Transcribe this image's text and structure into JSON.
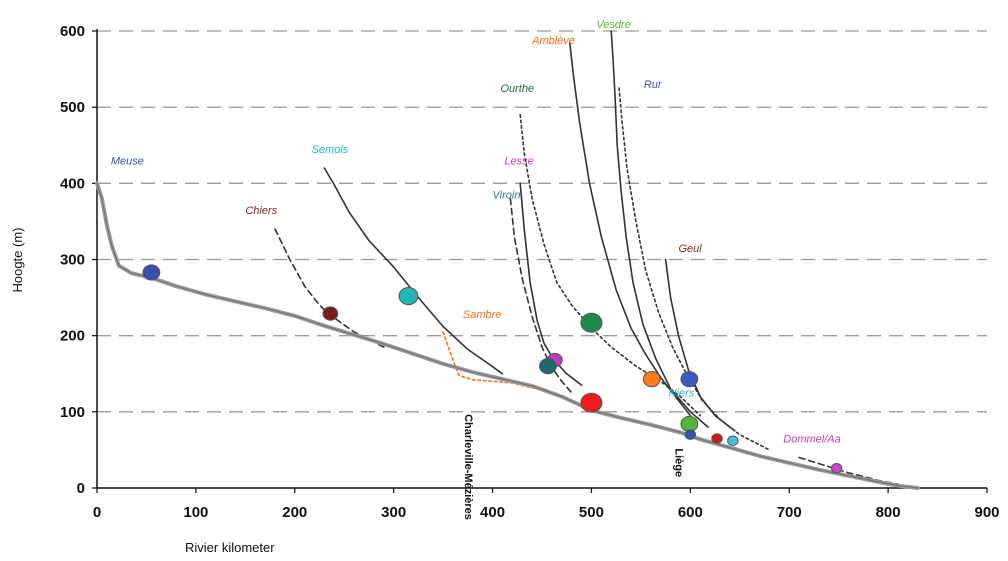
{
  "chart_data": {
    "type": "line",
    "xlabel": "Rivier kilometer",
    "ylabel": "Hoogte (m)",
    "xlim": [
      0,
      900
    ],
    "ylim": [
      0,
      600
    ],
    "x_ticks": [
      "0",
      "100",
      "200",
      "300",
      "400",
      "500",
      "600",
      "700",
      "800",
      "900"
    ],
    "y_ticks": [
      "0",
      "100",
      "200",
      "300",
      "400",
      "500",
      "600"
    ],
    "grid": "horizontal-dashed",
    "main_river": {
      "name": "Meuse",
      "color": "#9a9a9a",
      "points": [
        [
          0,
          400
        ],
        [
          5,
          380
        ],
        [
          10,
          345
        ],
        [
          15,
          318
        ],
        [
          22,
          292
        ],
        [
          35,
          282
        ],
        [
          55,
          276
        ],
        [
          80,
          265
        ],
        [
          110,
          254
        ],
        [
          140,
          245
        ],
        [
          170,
          236
        ],
        [
          200,
          226
        ],
        [
          230,
          213
        ],
        [
          260,
          201
        ],
        [
          290,
          189
        ],
        [
          320,
          176
        ],
        [
          350,
          163
        ],
        [
          380,
          152
        ],
        [
          410,
          143
        ],
        [
          440,
          134
        ],
        [
          470,
          120
        ],
        [
          500,
          102
        ],
        [
          530,
          92
        ],
        [
          560,
          83
        ],
        [
          590,
          73
        ],
        [
          610,
          64
        ],
        [
          640,
          53
        ],
        [
          670,
          42
        ],
        [
          700,
          33
        ],
        [
          730,
          24
        ],
        [
          760,
          16
        ],
        [
          790,
          8
        ],
        [
          810,
          3
        ],
        [
          830,
          0
        ]
      ]
    },
    "tributaries": [
      {
        "name": "Chiers",
        "color": "#7a1f1f",
        "style": "dashed",
        "label_color": "#7a1f1f",
        "points": [
          [
            180,
            340
          ],
          [
            195,
            300
          ],
          [
            210,
            265
          ],
          [
            225,
            240
          ],
          [
            238,
            225
          ],
          [
            260,
            205
          ],
          [
            290,
            185
          ]
        ]
      },
      {
        "name": "Semois",
        "color": "#22b5b5",
        "style": "solid",
        "label_color": "#22b5b5",
        "points": [
          [
            230,
            420
          ],
          [
            240,
            398
          ],
          [
            255,
            362
          ],
          [
            275,
            325
          ],
          [
            300,
            290
          ],
          [
            325,
            250
          ],
          [
            350,
            212
          ],
          [
            375,
            182
          ],
          [
            395,
            164
          ],
          [
            410,
            150
          ]
        ]
      },
      {
        "name": "Sambre",
        "color": "#ff6a13",
        "style": "dotted",
        "label_color": "#ff6a13",
        "points": [
          [
            350,
            205
          ],
          [
            358,
            175
          ],
          [
            366,
            148
          ],
          [
            380,
            142
          ],
          [
            420,
            138
          ],
          [
            460,
            125
          ],
          [
            500,
            102
          ]
        ]
      },
      {
        "name": "Viroin",
        "color": "#1f6b6b",
        "style": "dashed",
        "label_color": "#2b7b7b",
        "points": [
          [
            418,
            380
          ],
          [
            422,
            330
          ],
          [
            430,
            275
          ],
          [
            440,
            225
          ],
          [
            450,
            185
          ],
          [
            460,
            158
          ],
          [
            470,
            140
          ],
          [
            480,
            125
          ]
        ]
      },
      {
        "name": "Lesse",
        "color": "#c03cc0",
        "style": "solid",
        "label_color": "#c03cc0",
        "points": [
          [
            428,
            400
          ],
          [
            432,
            340
          ],
          [
            438,
            270
          ],
          [
            445,
            220
          ],
          [
            452,
            190
          ],
          [
            462,
            168
          ],
          [
            475,
            150
          ],
          [
            490,
            135
          ]
        ]
      },
      {
        "name": "Ourthe",
        "color": "#1e8a4b",
        "style": "dotted",
        "label_color": "#1e6b3a",
        "points": [
          [
            428,
            490
          ],
          [
            432,
            440
          ],
          [
            440,
            380
          ],
          [
            452,
            320
          ],
          [
            465,
            270
          ],
          [
            480,
            240
          ],
          [
            500,
            210
          ],
          [
            520,
            185
          ],
          [
            545,
            160
          ],
          [
            570,
            140
          ],
          [
            590,
            120
          ],
          [
            610,
            95
          ]
        ]
      },
      {
        "name": "Amblève",
        "color": "#ff7a1a",
        "style": "solid",
        "label_color": "#ff6a13",
        "points": [
          [
            478,
            585
          ],
          [
            482,
            540
          ],
          [
            488,
            480
          ],
          [
            498,
            400
          ],
          [
            510,
            330
          ],
          [
            525,
            260
          ],
          [
            540,
            210
          ],
          [
            555,
            175
          ],
          [
            570,
            145
          ],
          [
            585,
            120
          ],
          [
            600,
            95
          ]
        ]
      },
      {
        "name": "Vesdre",
        "color": "#4cbb3a",
        "style": "solid",
        "label_color": "#55bb33",
        "points": [
          [
            520,
            600
          ],
          [
            522,
            560
          ],
          [
            524,
            510
          ],
          [
            526,
            450
          ],
          [
            530,
            390
          ],
          [
            535,
            330
          ],
          [
            542,
            270
          ],
          [
            552,
            215
          ],
          [
            565,
            170
          ],
          [
            580,
            130
          ],
          [
            600,
            100
          ],
          [
            618,
            80
          ]
        ]
      },
      {
        "name": "Rur",
        "color": "#3a5bc0",
        "style": "dotted",
        "label_color": "#3a4db0",
        "points": [
          [
            528,
            525
          ],
          [
            531,
            480
          ],
          [
            536,
            420
          ],
          [
            545,
            350
          ],
          [
            555,
            285
          ],
          [
            568,
            230
          ],
          [
            582,
            185
          ],
          [
            596,
            150
          ],
          [
            612,
            115
          ],
          [
            630,
            90
          ],
          [
            650,
            70
          ],
          [
            680,
            50
          ]
        ]
      },
      {
        "name": "Geul",
        "color": "#7a2a14",
        "style": "solid",
        "label_color": "#7a2a14",
        "points": [
          [
            575,
            300
          ],
          [
            580,
            250
          ],
          [
            588,
            200
          ],
          [
            598,
            155
          ],
          [
            610,
            120
          ],
          [
            625,
            95
          ],
          [
            645,
            75
          ]
        ]
      },
      {
        "name": "Dommel/Aa",
        "color": "#c03cc0",
        "style": "dashed",
        "label_color": "#c03cc0",
        "points": [
          [
            710,
            40
          ],
          [
            735,
            30
          ],
          [
            760,
            20
          ],
          [
            790,
            10
          ],
          [
            810,
            5
          ]
        ]
      }
    ],
    "confluences": [
      {
        "river": "Meuse",
        "x": 55,
        "y": 283,
        "color": "#3a4db0",
        "size": 8
      },
      {
        "river": "Chiers",
        "x": 236,
        "y": 229,
        "color": "#7a1a1a",
        "size": 7
      },
      {
        "river": "Semois",
        "x": 315,
        "y": 252,
        "color": "#22b5b5",
        "size": 9
      },
      {
        "river": "Lesse",
        "x": 463,
        "y": 168,
        "color": "#c03cc0",
        "size": 7
      },
      {
        "river": "Viroin",
        "x": 456,
        "y": 160,
        "color": "#1f6b6b",
        "size": 8
      },
      {
        "river": "Sambre",
        "x": 500,
        "y": 112,
        "color": "#ee1c1c",
        "size": 10
      },
      {
        "river": "Ourthe",
        "x": 500,
        "y": 217,
        "color": "#1e8a4b",
        "size": 10
      },
      {
        "river": "Amblève",
        "x": 561,
        "y": 143,
        "color": "#ff7a1a",
        "size": 8
      },
      {
        "river": "Rur",
        "x": 599,
        "y": 143,
        "color": "#3a5bc0",
        "size": 8
      },
      {
        "river": "Vesdre",
        "x": 599,
        "y": 84,
        "color": "#4cbb3a",
        "size": 8
      },
      {
        "river": "Geul",
        "x": 600,
        "y": 70,
        "color": "#3a4db0",
        "size": 5
      },
      {
        "river": "Ourthe-small",
        "x": 627,
        "y": 65,
        "color": "#cc1a1a",
        "size": 5
      },
      {
        "river": "Niers",
        "x": 643,
        "y": 62,
        "color": "#44c0e0",
        "size": 5
      },
      {
        "river": "Dommel/Aa",
        "x": 748,
        "y": 26,
        "color": "#cc44cc",
        "size": 5
      }
    ],
    "river_labels": [
      {
        "text": "Meuse",
        "x": 14,
        "y": 425,
        "color": "#3a4db0"
      },
      {
        "text": "Semois",
        "x": 217,
        "y": 440,
        "color": "#22b5b5"
      },
      {
        "text": "Chiers",
        "x": 150,
        "y": 360,
        "color": "#7a1f1f"
      },
      {
        "text": "Sambre",
        "x": 370,
        "y": 223,
        "color": "#ff6a13"
      },
      {
        "text": "Viroin",
        "x": 400,
        "y": 380,
        "color": "#2b7b7b"
      },
      {
        "text": "Lesse",
        "x": 412,
        "y": 425,
        "color": "#c03cc0"
      },
      {
        "text": "Ourthe",
        "x": 408,
        "y": 520,
        "color": "#1e6b3a"
      },
      {
        "text": "Amblève",
        "x": 440,
        "y": 583,
        "color": "#ff6a13"
      },
      {
        "text": "Vesdre",
        "x": 505,
        "y": 604,
        "color": "#55bb33"
      },
      {
        "text": "Rur",
        "x": 553,
        "y": 525,
        "color": "#3a4db0"
      },
      {
        "text": "Geul",
        "x": 588,
        "y": 310,
        "color": "#7a2a14"
      },
      {
        "text": "Niers",
        "x": 578,
        "y": 120,
        "color": "#22b5d5"
      },
      {
        "text": "Dommel/Aa",
        "x": 694,
        "y": 60,
        "color": "#c03cc0"
      }
    ],
    "place_labels": [
      {
        "text": "Charleville-Mézières",
        "x": 372,
        "y": 97
      },
      {
        "text": "Liège",
        "x": 585,
        "y": 52
      }
    ]
  }
}
